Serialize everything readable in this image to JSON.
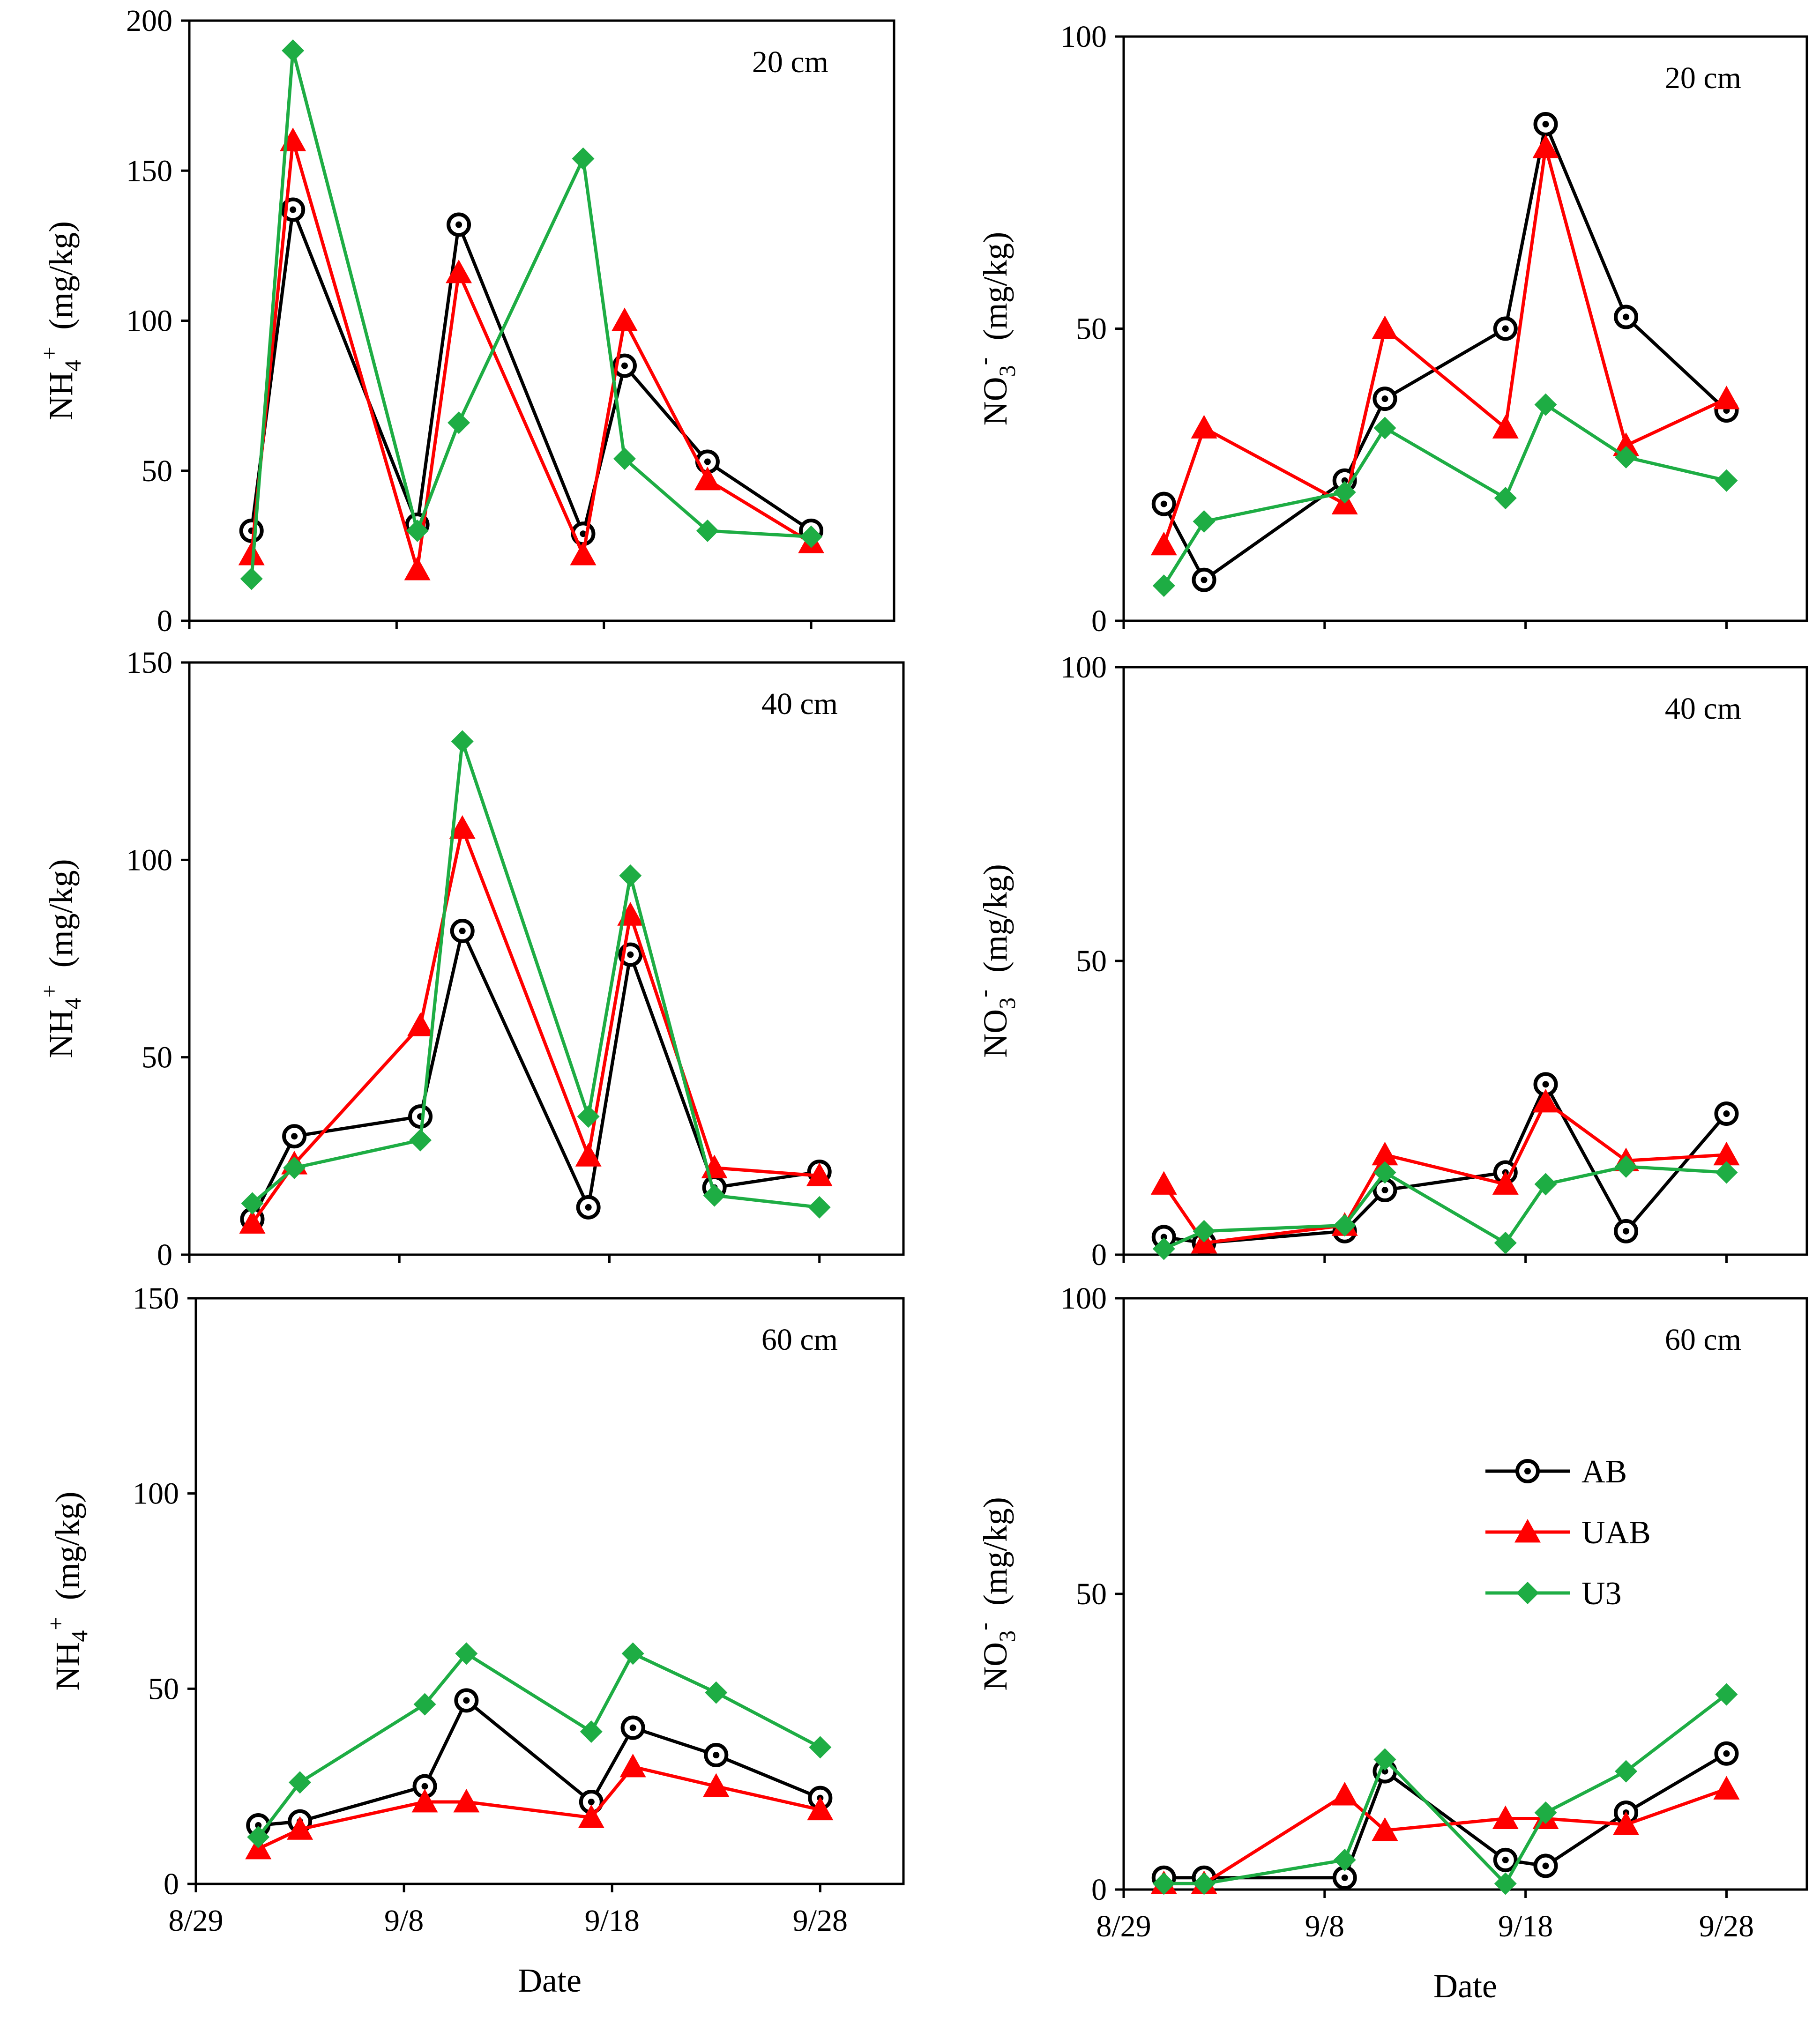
{
  "figure": {
    "legend": [
      {
        "key": "AB",
        "label": "AB"
      },
      {
        "key": "UAB",
        "label": "UAB"
      },
      {
        "key": "U3",
        "label": "U3"
      }
    ],
    "colors": {
      "AB": "#000000",
      "UAB": "#ff0000",
      "U3": "#1ead44"
    },
    "markers": {
      "AB": "circle",
      "UAB": "triangle",
      "U3": "diamond"
    },
    "x_tick_labels": [
      "8/29",
      "9/8",
      "9/18",
      "9/28"
    ],
    "x_tick_values": [
      0,
      10,
      20,
      30
    ]
  },
  "chart_data": [
    {
      "type": "line",
      "depth_label": "20 cm",
      "ylabel_main": "NH",
      "ylabel_sub": "4",
      "ylabel_sup": "+",
      "ylabel_unit": "(mg/kg)",
      "xlabel": "",
      "ylim": [
        0,
        200
      ],
      "yticks": [
        0,
        50,
        100,
        150,
        200
      ],
      "series": [
        {
          "name": "AB",
          "x": [
            3,
            5,
            11,
            13,
            19,
            21,
            25,
            30
          ],
          "values": [
            30,
            137,
            32,
            132,
            29,
            85,
            53,
            30
          ]
        },
        {
          "name": "UAB",
          "x": [
            3,
            5,
            11,
            13,
            19,
            21,
            25,
            30
          ],
          "values": [
            22,
            160,
            17,
            116,
            22,
            100,
            47,
            26
          ]
        },
        {
          "name": "U3",
          "x": [
            3,
            5,
            11,
            13,
            19,
            21,
            25,
            30
          ],
          "values": [
            14,
            190,
            30,
            66,
            154,
            54,
            30,
            28
          ]
        }
      ]
    },
    {
      "type": "line",
      "depth_label": "20 cm",
      "ylabel_main": "NO",
      "ylabel_sub": "3",
      "ylabel_sup": "-",
      "ylabel_unit": "(mg/kg)",
      "xlabel": "",
      "ylim": [
        0,
        100
      ],
      "yticks": [
        0,
        50,
        100
      ],
      "series": [
        {
          "name": "AB",
          "x": [
            2,
            4,
            11,
            13,
            19,
            21,
            25,
            30
          ],
          "values": [
            20,
            7,
            24,
            38,
            50,
            85,
            52,
            36
          ]
        },
        {
          "name": "UAB",
          "x": [
            2,
            4,
            11,
            13,
            19,
            21,
            25,
            30
          ],
          "values": [
            13,
            33,
            20,
            50,
            33,
            81,
            30,
            38
          ]
        },
        {
          "name": "U3",
          "x": [
            2,
            4,
            11,
            13,
            19,
            21,
            25,
            30
          ],
          "values": [
            6,
            17,
            22,
            33,
            21,
            37,
            28,
            24
          ]
        }
      ]
    },
    {
      "type": "line",
      "depth_label": "40 cm",
      "ylabel_main": "NH",
      "ylabel_sub": "4",
      "ylabel_sup": "+",
      "ylabel_unit": "(mg/kg)",
      "xlabel": "",
      "ylim": [
        0,
        150
      ],
      "yticks": [
        0,
        50,
        100,
        150
      ],
      "series": [
        {
          "name": "AB",
          "x": [
            3,
            5,
            11,
            13,
            19,
            21,
            25,
            30
          ],
          "values": [
            9,
            30,
            35,
            82,
            12,
            76,
            17,
            21
          ]
        },
        {
          "name": "UAB",
          "x": [
            3,
            5,
            11,
            13,
            19,
            21,
            25,
            30
          ],
          "values": [
            8,
            23,
            58,
            108,
            25,
            86,
            22,
            20
          ]
        },
        {
          "name": "U3",
          "x": [
            3,
            5,
            11,
            13,
            19,
            21,
            25,
            30
          ],
          "values": [
            13,
            22,
            29,
            130,
            35,
            96,
            15,
            12
          ]
        }
      ]
    },
    {
      "type": "line",
      "depth_label": "40 cm",
      "ylabel_main": "NO",
      "ylabel_sub": "3",
      "ylabel_sup": "-",
      "ylabel_unit": "(mg/kg)",
      "xlabel": "",
      "ylim": [
        0,
        100
      ],
      "yticks": [
        0,
        50,
        100
      ],
      "series": [
        {
          "name": "AB",
          "x": [
            2,
            4,
            11,
            13,
            19,
            21,
            25,
            30
          ],
          "values": [
            3,
            2,
            4,
            11,
            14,
            29,
            4,
            24
          ]
        },
        {
          "name": "UAB",
          "x": [
            2,
            4,
            11,
            13,
            19,
            21,
            25,
            30
          ],
          "values": [
            12,
            2,
            5,
            17,
            12,
            26,
            16,
            17
          ]
        },
        {
          "name": "U3",
          "x": [
            2,
            4,
            11,
            13,
            19,
            21,
            25,
            30
          ],
          "values": [
            1,
            4,
            5,
            14,
            2,
            12,
            15,
            14
          ]
        }
      ]
    },
    {
      "type": "line",
      "depth_label": "60 cm",
      "ylabel_main": "NH",
      "ylabel_sub": "4",
      "ylabel_sup": "+",
      "ylabel_unit": "(mg/kg)",
      "xlabel": "Date",
      "ylim": [
        0,
        150
      ],
      "yticks": [
        0,
        50,
        100,
        150
      ],
      "series": [
        {
          "name": "AB",
          "x": [
            3,
            5,
            11,
            13,
            19,
            21,
            25,
            30
          ],
          "values": [
            15,
            16,
            25,
            47,
            21,
            40,
            33,
            22
          ]
        },
        {
          "name": "UAB",
          "x": [
            3,
            5,
            11,
            13,
            19,
            21,
            25,
            30
          ],
          "values": [
            9,
            14,
            21,
            21,
            17,
            30,
            25,
            19
          ]
        },
        {
          "name": "U3",
          "x": [
            3,
            5,
            11,
            13,
            19,
            21,
            25,
            30
          ],
          "values": [
            12,
            26,
            46,
            59,
            39,
            59,
            49,
            35
          ]
        }
      ]
    },
    {
      "type": "line",
      "depth_label": "60 cm",
      "ylabel_main": "NO",
      "ylabel_sub": "3",
      "ylabel_sup": "-",
      "ylabel_unit": "(mg/kg)",
      "xlabel": "Date",
      "ylim": [
        0,
        100
      ],
      "yticks": [
        0,
        50,
        100
      ],
      "series": [
        {
          "name": "AB",
          "x": [
            2,
            4,
            11,
            13,
            19,
            21,
            25,
            30
          ],
          "values": [
            2,
            2,
            2,
            20,
            5,
            4,
            13,
            23
          ]
        },
        {
          "name": "UAB",
          "x": [
            2,
            4,
            11,
            13,
            19,
            21,
            25,
            30
          ],
          "values": [
            1,
            1,
            16,
            10,
            12,
            12,
            11,
            17
          ]
        },
        {
          "name": "U3",
          "x": [
            2,
            4,
            11,
            13,
            19,
            21,
            25,
            30
          ],
          "values": [
            1,
            1,
            5,
            22,
            1,
            13,
            20,
            33
          ]
        }
      ]
    }
  ]
}
